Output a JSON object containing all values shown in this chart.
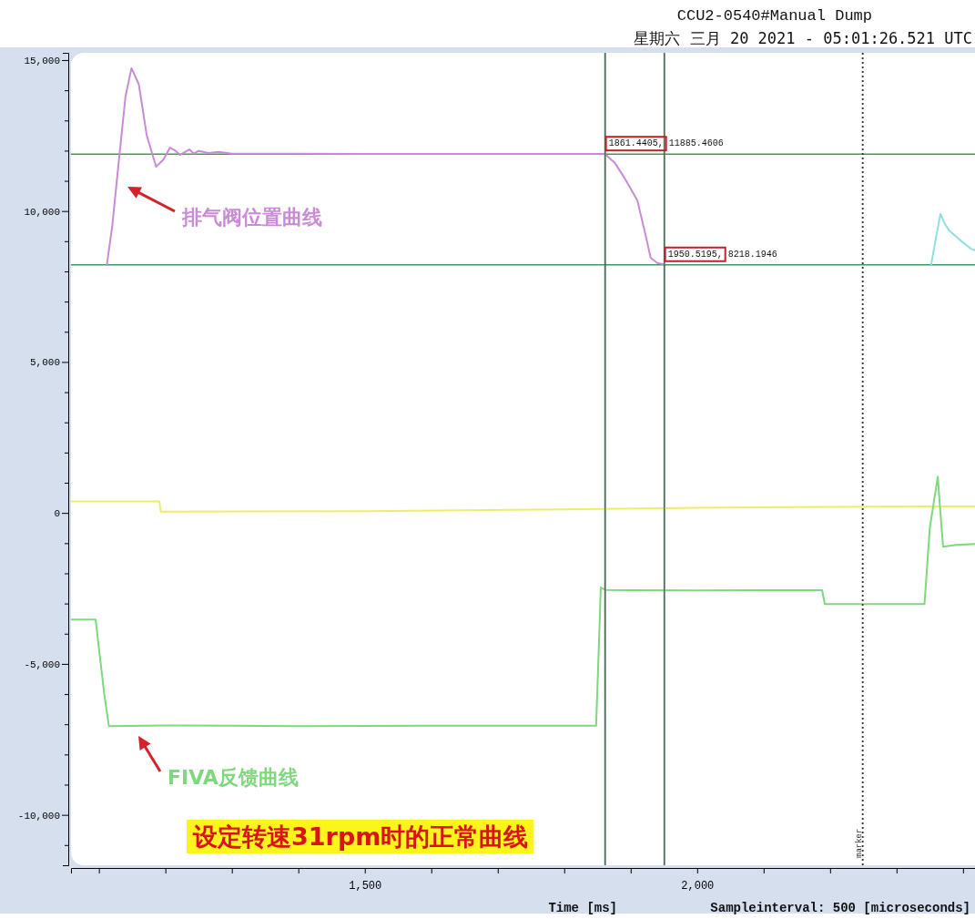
{
  "chart_data": {
    "type": "line",
    "title": "CCU2-0540#Manual Dump",
    "subtitle": "星期六 三月 20 2021  -  05:01:26.521 UTC",
    "xlabel": "Time [ms]",
    "xlim": [
      1058,
      2418
    ],
    "ylim": [
      -11670,
      15240
    ],
    "xticks": [
      {
        "value": 1100,
        "label": null
      },
      {
        "value": 1200,
        "label": null
      },
      {
        "value": 1300,
        "label": null
      },
      {
        "value": 1400,
        "label": null
      },
      {
        "value": 1500,
        "label": "1,500"
      },
      {
        "value": 1600,
        "label": null
      },
      {
        "value": 1700,
        "label": null
      },
      {
        "value": 1800,
        "label": null
      },
      {
        "value": 1900,
        "label": null
      },
      {
        "value": 2000,
        "label": "2,000"
      },
      {
        "value": 2100,
        "label": null
      },
      {
        "value": 2200,
        "label": null
      },
      {
        "value": 2300,
        "label": null
      },
      {
        "value": 2400,
        "label": null
      }
    ],
    "yticks": [
      {
        "value": -11000,
        "label": null
      },
      {
        "value": -10000,
        "label": "-10,000"
      },
      {
        "value": -9000,
        "label": null
      },
      {
        "value": -8000,
        "label": null
      },
      {
        "value": -7000,
        "label": null
      },
      {
        "value": -6000,
        "label": null
      },
      {
        "value": -5000,
        "label": "-5,000"
      },
      {
        "value": -4000,
        "label": null
      },
      {
        "value": -3000,
        "label": null
      },
      {
        "value": -2000,
        "label": null
      },
      {
        "value": -1000,
        "label": null
      },
      {
        "value": 0,
        "label": "0"
      },
      {
        "value": 1000,
        "label": null
      },
      {
        "value": 2000,
        "label": null
      },
      {
        "value": 3000,
        "label": null
      },
      {
        "value": 4000,
        "label": null
      },
      {
        "value": 5000,
        "label": "5,000"
      },
      {
        "value": 6000,
        "label": null
      },
      {
        "value": 7000,
        "label": null
      },
      {
        "value": 8000,
        "label": null
      },
      {
        "value": 9000,
        "label": null
      },
      {
        "value": 10000,
        "label": "10,000"
      },
      {
        "value": 11000,
        "label": null
      },
      {
        "value": 12000,
        "label": null
      },
      {
        "value": 13000,
        "label": null
      },
      {
        "value": 14000,
        "label": null
      },
      {
        "value": 15000,
        "label": "15,000"
      }
    ],
    "series": [
      {
        "color": "#c98ad6",
        "x": [
          1112,
          1120,
          1131,
          1140,
          1149,
          1160,
          1172,
          1186,
          1197,
          1207,
          1215,
          1222,
          1229,
          1236,
          1243,
          1250,
          1265,
          1280,
          1300,
          1400,
          1500,
          1600,
          1700,
          1800,
          1861,
          1876,
          1892,
          1910,
          1923,
          1930,
          1940,
          1948,
          1950.5
        ],
        "values": [
          8220,
          9500,
          11890,
          13800,
          14730,
          14200,
          12500,
          11470,
          11700,
          12100,
          12000,
          11860,
          11950,
          12040,
          11900,
          11990,
          11920,
          11960,
          11900,
          11900,
          11890,
          11890,
          11890,
          11890,
          11890,
          11600,
          11050,
          10350,
          9150,
          8450,
          8280,
          8240,
          8220
        ]
      },
      {
        "color": "#8fdfe0",
        "x": [
          2352,
          2360,
          2366,
          2372,
          2379,
          2395,
          2412,
          2418
        ],
        "values": [
          8220,
          9200,
          9900,
          9600,
          9360,
          9050,
          8750,
          8700
        ]
      },
      {
        "color": "#eded6a",
        "x": [
          1058,
          1191,
          1193,
          1300,
          1500,
          1800,
          2000,
          2200,
          2418
        ],
        "values": [
          380,
          380,
          40,
          50,
          60,
          120,
          170,
          200,
          220
        ]
      },
      {
        "color": "#7ed87e",
        "x": [
          1058,
          1095,
          1108,
          1115,
          1200,
          1400,
          1600,
          1800,
          1848,
          1852,
          1855,
          1862,
          1900,
          2000,
          2100,
          2188,
          2192,
          2250,
          2342,
          2350,
          2362,
          2366,
          2370,
          2390,
          2418
        ],
        "values": [
          -3530,
          -3530,
          -6000,
          -7060,
          -7040,
          -7060,
          -7050,
          -7050,
          -7050,
          -4500,
          -2470,
          -2550,
          -2560,
          -2570,
          -2560,
          -2560,
          -3020,
          -3020,
          -3020,
          -500,
          1200,
          0,
          -1120,
          -1060,
          -1030
        ]
      }
    ],
    "ref_lines": [
      {
        "axis": "y",
        "value": 11885.4606,
        "color": "#3f9a5c"
      },
      {
        "axis": "y",
        "value": 8218.1946,
        "color": "#3f9a5c"
      },
      {
        "axis": "x",
        "value": 1861.4405,
        "color": "#4d6b58"
      },
      {
        "axis": "x",
        "value": 1950.5195,
        "color": "#4d6b58"
      },
      {
        "axis": "x",
        "value": 2249,
        "label": "marker",
        "color": "#333333",
        "line_style": "dotted"
      }
    ],
    "annotations": [
      {
        "text": "1861.4405, 11885.4606",
        "x": 1861.4405,
        "y": 11885.4606
      },
      {
        "text": "1950.5195, 8218.1946",
        "x": 1950.5195,
        "y": 8218.1946
      },
      "排气阀位置曲线",
      "FIVA反馈曲线",
      "设定转速31rpm时的正常曲线",
      "Sampleinterval: 500 [microseconds]"
    ]
  }
}
